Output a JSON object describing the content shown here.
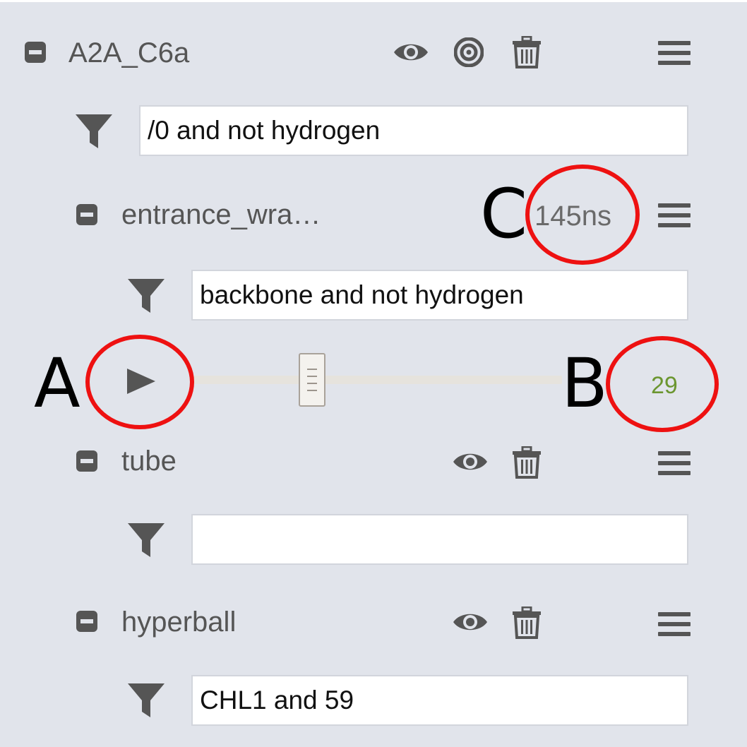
{
  "layers": [
    {
      "name": "A2A_C6a",
      "filter_value": "/0 and not hydrogen",
      "icons": [
        "eye-icon",
        "target-icon",
        "trash-icon"
      ]
    },
    {
      "name": "entrance_wra…",
      "filter_value": "backbone and not hydrogen",
      "time_label": "145ns",
      "player": {
        "frame": "29",
        "slider_fraction": 0.33
      }
    },
    {
      "name": "tube",
      "filter_value": "",
      "icons": [
        "eye-icon",
        "trash-icon"
      ]
    },
    {
      "name": "hyperball",
      "filter_value": "CHL1 and 59",
      "icons": [
        "eye-icon",
        "trash-icon"
      ]
    }
  ],
  "annotations": {
    "a": "A",
    "b": "B",
    "c": "C"
  },
  "colors": {
    "background": "#e1e4eb",
    "icon": "#555555",
    "frame_text": "#6b9630",
    "annotation_ring": "#ee1111"
  }
}
